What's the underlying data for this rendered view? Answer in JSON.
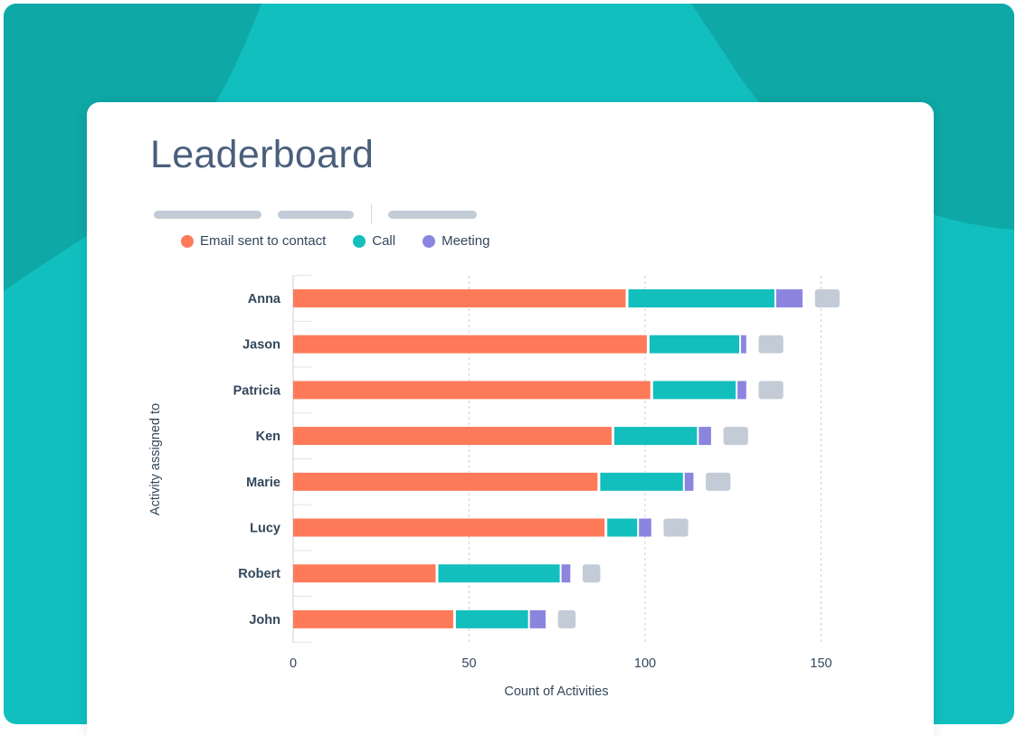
{
  "title": "Leaderboard",
  "colors": {
    "background_teal": "#12bfbf",
    "background_teal_dark": "#0ea8a6",
    "card": "#ffffff",
    "title_text": "#4b5f7c",
    "placeholder_bar": "#c3ccd6"
  },
  "chart_data": {
    "type": "bar",
    "orientation": "horizontal",
    "stacked": true,
    "categories": [
      "Anna",
      "Jason",
      "Patricia",
      "Ken",
      "Marie",
      "Lucy",
      "Robert",
      "John"
    ],
    "series": [
      {
        "name": "Email sent to contact",
        "color": "#ff7a59",
        "values": [
          95,
          101,
          102,
          91,
          87,
          89,
          41,
          46
        ]
      },
      {
        "name": "Call",
        "color": "#13bfbc",
        "values": [
          42,
          26,
          24,
          24,
          24,
          9,
          35,
          21
        ]
      },
      {
        "name": "Meeting",
        "color": "#8b85e0",
        "values": [
          8,
          2,
          3,
          4,
          3,
          4,
          3,
          5
        ]
      },
      {
        "color": "#c3ccd6",
        "values": [
          7,
          7,
          7,
          7,
          7,
          7,
          5,
          5
        ]
      }
    ],
    "xlabel": "Count of Activities",
    "ylabel": "Activity assigned to",
    "xticks": [
      0,
      50,
      100,
      150
    ],
    "xlim": [
      0,
      175
    ],
    "grid": "vertical-dashed",
    "legend": "top-left"
  }
}
